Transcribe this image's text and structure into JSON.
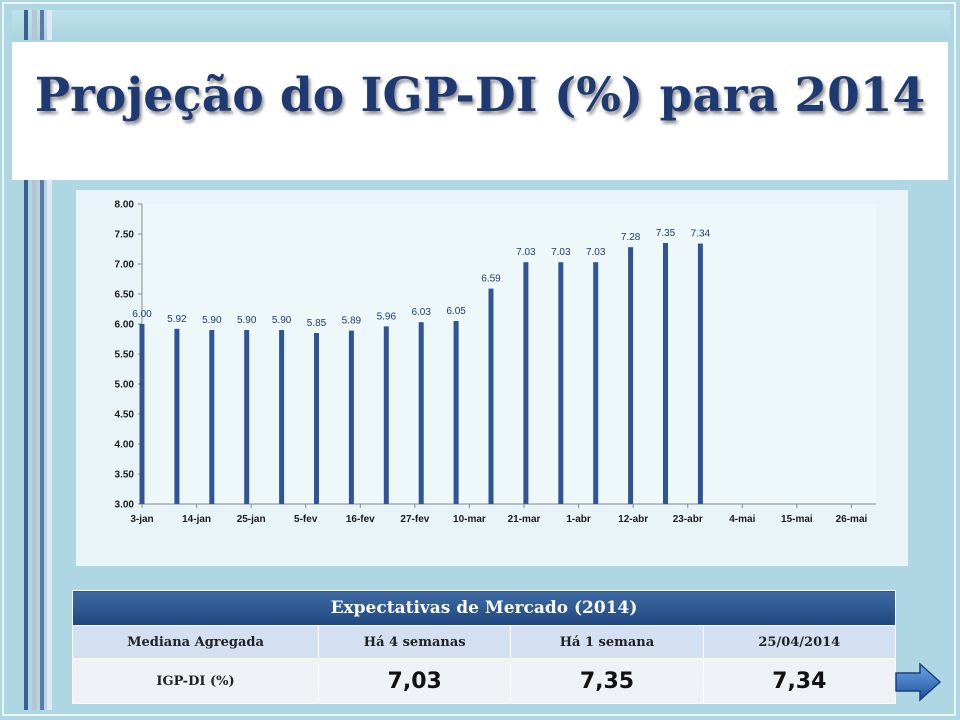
{
  "title": "Projeção do IGP-DI (%) para 2014",
  "chart_data": {
    "type": "bar",
    "title": "",
    "xlabel": "",
    "ylabel": "",
    "ylim": [
      3.0,
      8.0
    ],
    "y_ticks": [
      "3.00",
      "3.50",
      "4.00",
      "4.50",
      "5.00",
      "5.50",
      "6.00",
      "6.50",
      "7.00",
      "7.50",
      "8.00"
    ],
    "x_tick_labels": [
      "3-jan",
      "14-jan",
      "25-jan",
      "5-fev",
      "16-fev",
      "27-fev",
      "10-mar",
      "21-mar",
      "1-abr",
      "12-abr",
      "23-abr",
      "4-mai",
      "15-mai",
      "26-mai"
    ],
    "values": [
      6.0,
      5.92,
      5.9,
      5.9,
      5.9,
      5.85,
      5.89,
      5.96,
      6.03,
      6.05,
      6.59,
      7.03,
      7.03,
      7.03,
      7.28,
      7.35,
      7.34
    ],
    "value_labels": [
      "6.00",
      "5.92",
      "5.90",
      "5.90",
      "5.90",
      "5.85",
      "5.89",
      "5.96",
      "6.03",
      "6.05",
      "6.59",
      "7.03",
      "7.03",
      "7.03",
      "7.28",
      "7.35",
      "7.34"
    ],
    "bar_color": "#2f5597"
  },
  "table": {
    "title": "Expectativas de Mercado (2014)",
    "headers": [
      "Mediana Agregada",
      "Há 4 semanas",
      "Há 1 semana",
      "25/04/2014"
    ],
    "row": {
      "label": "IGP-DI (%)",
      "values": [
        "7,03",
        "7,35",
        "7,34"
      ]
    }
  },
  "nav": {
    "next_icon": "right-arrow-icon"
  },
  "colors": {
    "title": "#1f3a73",
    "background": "#aed7e3",
    "table_header": "#2a5289"
  }
}
